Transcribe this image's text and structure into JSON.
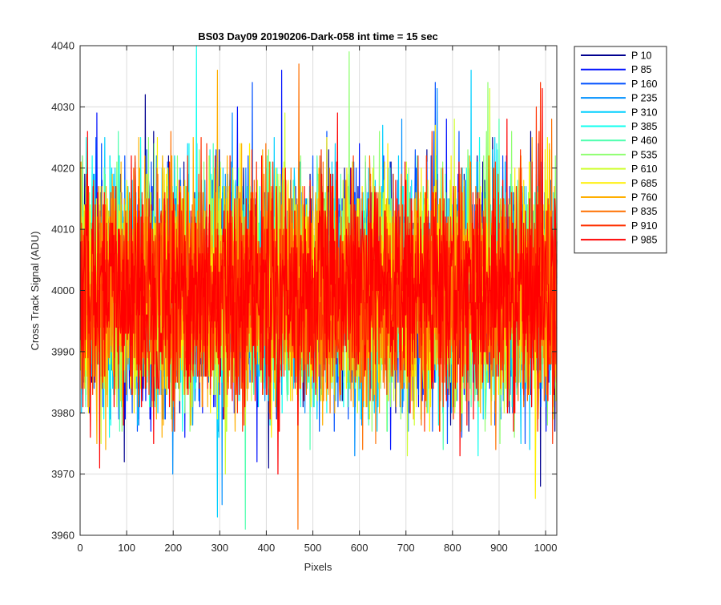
{
  "chart_data": {
    "type": "line",
    "title": "BS03 Day09 20190206-Dark-058 int time = 15 sec",
    "xlabel": "Pixels",
    "ylabel": "Cross Track Signal (ADU)",
    "xlim": [
      0,
      1024
    ],
    "ylim": [
      3960,
      4040
    ],
    "x_ticks": [
      0,
      100,
      200,
      300,
      400,
      500,
      600,
      700,
      800,
      900,
      1000
    ],
    "y_ticks": [
      3960,
      3970,
      3980,
      3990,
      4000,
      4010,
      4020,
      4030,
      4040
    ],
    "grid": true,
    "legend_position": "outside-right",
    "x_range": [
      1,
      1024
    ],
    "signal_mean": 4000,
    "signal_typical_range": [
      3983,
      4020
    ],
    "series": [
      {
        "name": "P 10",
        "color": "#00008f"
      },
      {
        "name": "P 85",
        "color": "#0010ff"
      },
      {
        "name": "P 160",
        "color": "#0050ff"
      },
      {
        "name": "P 235",
        "color": "#0090ff"
      },
      {
        "name": "P 310",
        "color": "#00cfff"
      },
      {
        "name": "P 385",
        "color": "#10ffef"
      },
      {
        "name": "P 460",
        "color": "#50ffaf"
      },
      {
        "name": "P 535",
        "color": "#8fff70"
      },
      {
        "name": "P 610",
        "color": "#cfff30"
      },
      {
        "name": "P 685",
        "color": "#ffef00"
      },
      {
        "name": "P 760",
        "color": "#ffaf00"
      },
      {
        "name": "P 835",
        "color": "#ff7000"
      },
      {
        "name": "P 910",
        "color": "#ff3000"
      },
      {
        "name": "P 985",
        "color": "#ff0000"
      }
    ],
    "notable_spikes": [
      {
        "series": "P 10",
        "x": 140,
        "y": 4032
      },
      {
        "series": "P 160",
        "x": 370,
        "y": 4034
      },
      {
        "series": "P 85",
        "x": 433,
        "y": 4036
      },
      {
        "series": "P 385",
        "x": 250,
        "y": 4040
      },
      {
        "series": "P 535",
        "x": 578,
        "y": 4039
      },
      {
        "series": "P 760",
        "x": 295,
        "y": 4036
      },
      {
        "series": "P 835",
        "x": 470,
        "y": 4037
      },
      {
        "series": "P 910",
        "x": 980,
        "y": 4030
      },
      {
        "series": "P 310",
        "x": 840,
        "y": 4036
      },
      {
        "series": "P 310",
        "x": 295,
        "y": 3963
      },
      {
        "series": "P 235",
        "x": 305,
        "y": 3965
      },
      {
        "series": "P 685",
        "x": 978,
        "y": 3966
      },
      {
        "series": "P 985",
        "x": 42,
        "y": 3971
      },
      {
        "series": "P 385",
        "x": 855,
        "y": 3973
      },
      {
        "series": "P 835",
        "x": 635,
        "y": 3975
      },
      {
        "series": "P 10",
        "x": 95,
        "y": 3972
      }
    ]
  }
}
